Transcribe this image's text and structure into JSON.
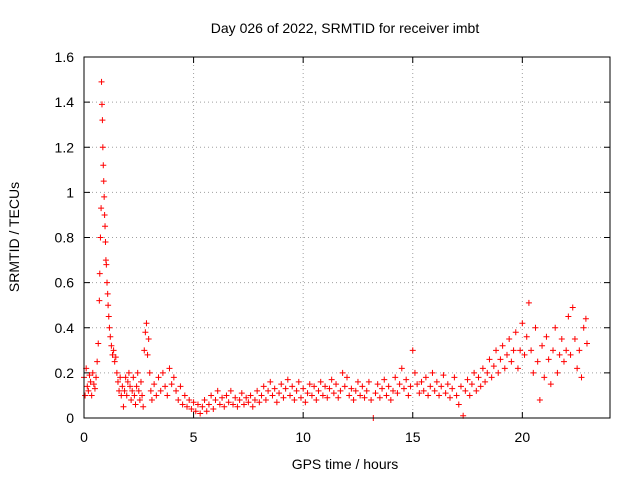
{
  "chart_data": {
    "type": "scatter",
    "title": "Day 026 of 2022, SRMTID for receiver imbt",
    "xlabel": "GPS time / hours",
    "ylabel": "SRMTID / TECUs",
    "xlim": [
      0,
      24
    ],
    "ylim": [
      0,
      1.6
    ],
    "xticks": [
      {
        "v": 0,
        "label": "0"
      },
      {
        "v": 5,
        "label": "5"
      },
      {
        "v": 10,
        "label": "10"
      },
      {
        "v": 15,
        "label": "15"
      },
      {
        "v": 20,
        "label": "20"
      }
    ],
    "yticks": [
      {
        "v": 0,
        "label": "0"
      },
      {
        "v": 0.2,
        "label": "0.2"
      },
      {
        "v": 0.4,
        "label": "0.4"
      },
      {
        "v": 0.6,
        "label": "0.6"
      },
      {
        "v": 0.8,
        "label": "0.8"
      },
      {
        "v": 1.0,
        "label": "1"
      },
      {
        "v": 1.2,
        "label": "1.2"
      },
      {
        "v": 1.4,
        "label": "1.4"
      },
      {
        "v": 1.6,
        "label": "1.6"
      }
    ],
    "grid": true,
    "marker": "+",
    "series": [
      {
        "name": "SRMTID",
        "color": "#ff0000",
        "points": [
          [
            0.0,
            0.18
          ],
          [
            0.05,
            0.1
          ],
          [
            0.1,
            0.22
          ],
          [
            0.15,
            0.14
          ],
          [
            0.2,
            0.12
          ],
          [
            0.25,
            0.19
          ],
          [
            0.3,
            0.16
          ],
          [
            0.35,
            0.1
          ],
          [
            0.4,
            0.2
          ],
          [
            0.45,
            0.15
          ],
          [
            0.5,
            0.13
          ],
          [
            0.55,
            0.18
          ],
          [
            0.6,
            0.25
          ],
          [
            0.65,
            0.33
          ],
          [
            0.7,
            0.52
          ],
          [
            0.72,
            0.64
          ],
          [
            0.75,
            0.8
          ],
          [
            0.78,
            0.93
          ],
          [
            0.8,
            1.49
          ],
          [
            0.82,
            1.39
          ],
          [
            0.84,
            1.32
          ],
          [
            0.86,
            1.2
          ],
          [
            0.88,
            1.12
          ],
          [
            0.9,
            1.05
          ],
          [
            0.92,
            0.98
          ],
          [
            0.94,
            0.9
          ],
          [
            0.96,
            0.85
          ],
          [
            0.98,
            0.78
          ],
          [
            1.0,
            0.7
          ],
          [
            1.02,
            0.68
          ],
          [
            1.05,
            0.6
          ],
          [
            1.08,
            0.55
          ],
          [
            1.1,
            0.5
          ],
          [
            1.13,
            0.45
          ],
          [
            1.16,
            0.4
          ],
          [
            1.2,
            0.36
          ],
          [
            1.25,
            0.32
          ],
          [
            1.3,
            0.28
          ],
          [
            1.35,
            0.3
          ],
          [
            1.4,
            0.25
          ],
          [
            1.45,
            0.27
          ],
          [
            1.5,
            0.2
          ],
          [
            1.55,
            0.16
          ],
          [
            1.6,
            0.12
          ],
          [
            1.65,
            0.18
          ],
          [
            1.7,
            0.1
          ],
          [
            1.75,
            0.14
          ],
          [
            1.8,
            0.05
          ],
          [
            1.85,
            0.12
          ],
          [
            1.9,
            0.18
          ],
          [
            1.95,
            0.1
          ],
          [
            2.0,
            0.16
          ],
          [
            2.05,
            0.2
          ],
          [
            2.1,
            0.14
          ],
          [
            2.15,
            0.08
          ],
          [
            2.2,
            0.12
          ],
          [
            2.25,
            0.18
          ],
          [
            2.3,
            0.1
          ],
          [
            2.35,
            0.06
          ],
          [
            2.4,
            0.14
          ],
          [
            2.45,
            0.2
          ],
          [
            2.5,
            0.12
          ],
          [
            2.55,
            0.08
          ],
          [
            2.6,
            0.16
          ],
          [
            2.65,
            0.1
          ],
          [
            2.7,
            0.05
          ],
          [
            2.75,
            0.3
          ],
          [
            2.8,
            0.38
          ],
          [
            2.85,
            0.42
          ],
          [
            2.9,
            0.28
          ],
          [
            2.95,
            0.35
          ],
          [
            3.0,
            0.2
          ],
          [
            3.05,
            0.12
          ],
          [
            3.1,
            0.08
          ],
          [
            3.2,
            0.15
          ],
          [
            3.3,
            0.1
          ],
          [
            3.4,
            0.18
          ],
          [
            3.5,
            0.12
          ],
          [
            3.6,
            0.2
          ],
          [
            3.7,
            0.14
          ],
          [
            3.8,
            0.1
          ],
          [
            3.9,
            0.22
          ],
          [
            4.0,
            0.15
          ],
          [
            4.1,
            0.18
          ],
          [
            4.2,
            0.12
          ],
          [
            4.3,
            0.08
          ],
          [
            4.4,
            0.14
          ],
          [
            4.5,
            0.06
          ],
          [
            4.6,
            0.1
          ],
          [
            4.7,
            0.05
          ],
          [
            4.8,
            0.08
          ],
          [
            4.9,
            0.04
          ],
          [
            5.0,
            0.07
          ],
          [
            5.1,
            0.03
          ],
          [
            5.2,
            0.06
          ],
          [
            5.3,
            0.02
          ],
          [
            5.4,
            0.05
          ],
          [
            5.5,
            0.08
          ],
          [
            5.6,
            0.03
          ],
          [
            5.7,
            0.06
          ],
          [
            5.8,
            0.1
          ],
          [
            5.9,
            0.04
          ],
          [
            6.0,
            0.08
          ],
          [
            6.1,
            0.12
          ],
          [
            6.2,
            0.06
          ],
          [
            6.3,
            0.09
          ],
          [
            6.4,
            0.05
          ],
          [
            6.5,
            0.1
          ],
          [
            6.6,
            0.07
          ],
          [
            6.7,
            0.12
          ],
          [
            6.8,
            0.06
          ],
          [
            6.9,
            0.09
          ],
          [
            7.0,
            0.05
          ],
          [
            7.1,
            0.08
          ],
          [
            7.2,
            0.11
          ],
          [
            7.3,
            0.06
          ],
          [
            7.4,
            0.09
          ],
          [
            7.5,
            0.07
          ],
          [
            7.6,
            0.1
          ],
          [
            7.7,
            0.05
          ],
          [
            7.8,
            0.08
          ],
          [
            7.9,
            0.12
          ],
          [
            8.0,
            0.07
          ],
          [
            8.1,
            0.1
          ],
          [
            8.2,
            0.14
          ],
          [
            8.3,
            0.08
          ],
          [
            8.4,
            0.12
          ],
          [
            8.5,
            0.16
          ],
          [
            8.6,
            0.1
          ],
          [
            8.7,
            0.13
          ],
          [
            8.8,
            0.07
          ],
          [
            8.9,
            0.11
          ],
          [
            9.0,
            0.15
          ],
          [
            9.1,
            0.09
          ],
          [
            9.2,
            0.13
          ],
          [
            9.3,
            0.17
          ],
          [
            9.4,
            0.1
          ],
          [
            9.5,
            0.14
          ],
          [
            9.6,
            0.08
          ],
          [
            9.7,
            0.12
          ],
          [
            9.8,
            0.16
          ],
          [
            9.9,
            0.09
          ],
          [
            10.0,
            0.13
          ],
          [
            10.1,
            0.07
          ],
          [
            10.2,
            0.11
          ],
          [
            10.3,
            0.15
          ],
          [
            10.4,
            0.1
          ],
          [
            10.5,
            0.14
          ],
          [
            10.6,
            0.08
          ],
          [
            10.7,
            0.12
          ],
          [
            10.8,
            0.16
          ],
          [
            10.9,
            0.1
          ],
          [
            11.0,
            0.14
          ],
          [
            11.1,
            0.09
          ],
          [
            11.2,
            0.13
          ],
          [
            11.3,
            0.17
          ],
          [
            11.4,
            0.11
          ],
          [
            11.5,
            0.15
          ],
          [
            11.6,
            0.09
          ],
          [
            11.7,
            0.12
          ],
          [
            11.8,
            0.2
          ],
          [
            11.9,
            0.14
          ],
          [
            12.0,
            0.18
          ],
          [
            12.1,
            0.1
          ],
          [
            12.2,
            0.13
          ],
          [
            12.3,
            0.08
          ],
          [
            12.4,
            0.12
          ],
          [
            12.5,
            0.16
          ],
          [
            12.6,
            0.1
          ],
          [
            12.7,
            0.14
          ],
          [
            12.8,
            0.09
          ],
          [
            12.9,
            0.12
          ],
          [
            13.0,
            0.16
          ],
          [
            13.1,
            0.08
          ],
          [
            13.2,
            0.0
          ],
          [
            13.3,
            0.11
          ],
          [
            13.4,
            0.15
          ],
          [
            13.5,
            0.09
          ],
          [
            13.6,
            0.13
          ],
          [
            13.7,
            0.17
          ],
          [
            13.8,
            0.1
          ],
          [
            13.9,
            0.14
          ],
          [
            14.0,
            0.08
          ],
          [
            14.1,
            0.12
          ],
          [
            14.2,
            0.18
          ],
          [
            14.3,
            0.11
          ],
          [
            14.4,
            0.15
          ],
          [
            14.5,
            0.22
          ],
          [
            14.6,
            0.13
          ],
          [
            14.7,
            0.17
          ],
          [
            14.8,
            0.1
          ],
          [
            14.9,
            0.14
          ],
          [
            15.0,
            0.3
          ],
          [
            15.1,
            0.2
          ],
          [
            15.2,
            0.15
          ],
          [
            15.3,
            0.11
          ],
          [
            15.4,
            0.16
          ],
          [
            15.5,
            0.12
          ],
          [
            15.6,
            0.18
          ],
          [
            15.7,
            0.1
          ],
          [
            15.8,
            0.14
          ],
          [
            15.9,
            0.2
          ],
          [
            16.0,
            0.12
          ],
          [
            16.1,
            0.16
          ],
          [
            16.2,
            0.1
          ],
          [
            16.3,
            0.14
          ],
          [
            16.4,
            0.19
          ],
          [
            16.5,
            0.11
          ],
          [
            16.6,
            0.15
          ],
          [
            16.7,
            0.09
          ],
          [
            16.8,
            0.13
          ],
          [
            16.9,
            0.18
          ],
          [
            17.0,
            0.1
          ],
          [
            17.1,
            0.06
          ],
          [
            17.2,
            0.14
          ],
          [
            17.3,
            0.01
          ],
          [
            17.4,
            0.12
          ],
          [
            17.5,
            0.17
          ],
          [
            17.6,
            0.1
          ],
          [
            17.7,
            0.15
          ],
          [
            17.8,
            0.2
          ],
          [
            17.9,
            0.12
          ],
          [
            18.0,
            0.18
          ],
          [
            18.1,
            0.14
          ],
          [
            18.2,
            0.22
          ],
          [
            18.3,
            0.16
          ],
          [
            18.4,
            0.2
          ],
          [
            18.5,
            0.26
          ],
          [
            18.6,
            0.18
          ],
          [
            18.7,
            0.23
          ],
          [
            18.8,
            0.3
          ],
          [
            18.9,
            0.2
          ],
          [
            19.0,
            0.26
          ],
          [
            19.1,
            0.32
          ],
          [
            19.2,
            0.22
          ],
          [
            19.3,
            0.28
          ],
          [
            19.4,
            0.35
          ],
          [
            19.5,
            0.25
          ],
          [
            19.6,
            0.3
          ],
          [
            19.7,
            0.38
          ],
          [
            19.8,
            0.22
          ],
          [
            19.9,
            0.3
          ],
          [
            20.0,
            0.42
          ],
          [
            20.1,
            0.28
          ],
          [
            20.2,
            0.36
          ],
          [
            20.3,
            0.51
          ],
          [
            20.4,
            0.3
          ],
          [
            20.5,
            0.2
          ],
          [
            20.6,
            0.4
          ],
          [
            20.7,
            0.25
          ],
          [
            20.8,
            0.08
          ],
          [
            20.9,
            0.32
          ],
          [
            21.0,
            0.18
          ],
          [
            21.1,
            0.36
          ],
          [
            21.2,
            0.26
          ],
          [
            21.3,
            0.15
          ],
          [
            21.4,
            0.3
          ],
          [
            21.5,
            0.4
          ],
          [
            21.6,
            0.2
          ],
          [
            21.7,
            0.28
          ],
          [
            21.8,
            0.35
          ],
          [
            21.9,
            0.25
          ],
          [
            22.0,
            0.3
          ],
          [
            22.1,
            0.45
          ],
          [
            22.2,
            0.28
          ],
          [
            22.3,
            0.49
          ],
          [
            22.4,
            0.35
          ],
          [
            22.5,
            0.22
          ],
          [
            22.6,
            0.3
          ],
          [
            22.7,
            0.18
          ],
          [
            22.8,
            0.4
          ],
          [
            22.9,
            0.44
          ],
          [
            22.95,
            0.33
          ]
        ]
      }
    ]
  }
}
